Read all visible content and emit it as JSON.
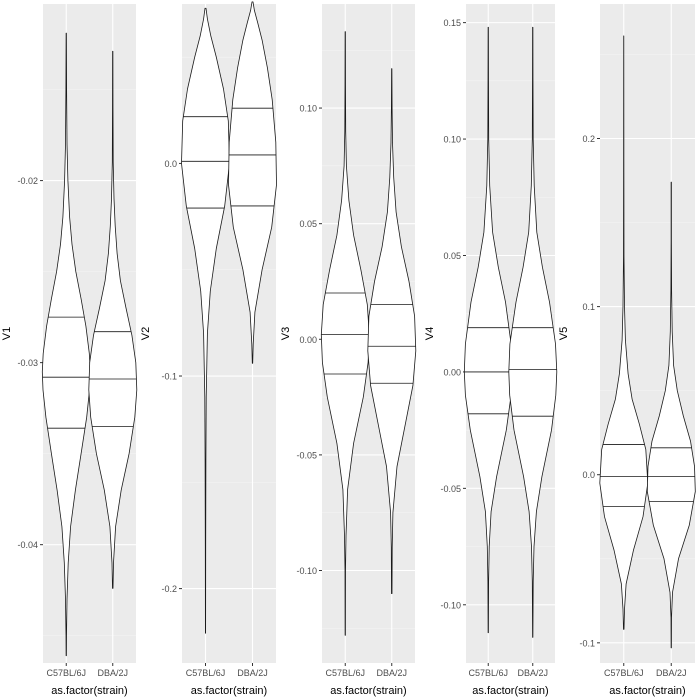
{
  "chart_data": [
    {
      "type": "violin",
      "xlabel": "as.factor(strain)",
      "ylabel": "V1",
      "categories": [
        "C57BL/6J",
        "DBA/2J"
      ],
      "ylim": [
        -0.0465,
        -0.0103
      ],
      "yticks": [
        -0.04,
        -0.03,
        -0.02
      ],
      "ytick_labels": [
        "-0.04",
        "-0.03",
        "-0.02"
      ],
      "grid": true,
      "series": [
        {
          "category": "C57BL/6J",
          "min": -0.0461,
          "max": -0.0119,
          "q1": -0.0336,
          "median": -0.0308,
          "q3": -0.0275,
          "profile": [
            [
              -0.0461,
              0.005
            ],
            [
              -0.045,
              0.01
            ],
            [
              -0.043,
              0.03
            ],
            [
              -0.041,
              0.08
            ],
            [
              -0.039,
              0.18
            ],
            [
              -0.037,
              0.38
            ],
            [
              -0.035,
              0.62
            ],
            [
              -0.033,
              0.85
            ],
            [
              -0.0315,
              0.97
            ],
            [
              -0.0305,
              1.0
            ],
            [
              -0.0295,
              0.96
            ],
            [
              -0.028,
              0.82
            ],
            [
              -0.0265,
              0.62
            ],
            [
              -0.025,
              0.4
            ],
            [
              -0.0235,
              0.24
            ],
            [
              -0.022,
              0.14
            ],
            [
              -0.02,
              0.07
            ],
            [
              -0.018,
              0.03
            ],
            [
              -0.015,
              0.015
            ],
            [
              -0.0119,
              0.005
            ]
          ]
        },
        {
          "category": "DBA/2J",
          "min": -0.0424,
          "max": -0.0129,
          "q1": -0.0335,
          "median": -0.0309,
          "q3": -0.0283,
          "profile": [
            [
              -0.0424,
              0.01
            ],
            [
              -0.041,
              0.03
            ],
            [
              -0.039,
              0.12
            ],
            [
              -0.037,
              0.35
            ],
            [
              -0.035,
              0.68
            ],
            [
              -0.033,
              0.92
            ],
            [
              -0.0315,
              1.0
            ],
            [
              -0.03,
              0.96
            ],
            [
              -0.0285,
              0.8
            ],
            [
              -0.027,
              0.55
            ],
            [
              -0.0255,
              0.32
            ],
            [
              -0.024,
              0.18
            ],
            [
              -0.0225,
              0.1
            ],
            [
              -0.021,
              0.05
            ],
            [
              -0.019,
              0.02
            ],
            [
              -0.016,
              0.01
            ],
            [
              -0.0129,
              0.005
            ]
          ]
        }
      ]
    },
    {
      "type": "violin",
      "xlabel": "as.factor(strain)",
      "ylabel": "V2",
      "categories": [
        "C57BL/6J",
        "DBA/2J"
      ],
      "ylim": [
        -0.235,
        0.075
      ],
      "yticks": [
        -0.2,
        -0.1,
        0.0
      ],
      "ytick_labels": [
        "-0.2",
        "-0.1",
        "0.0"
      ],
      "grid": true,
      "series": [
        {
          "category": "C57BL/6J",
          "min": -0.221,
          "max": 0.073,
          "q1": -0.021,
          "median": 0.001,
          "q3": 0.022,
          "profile": [
            [
              -0.221,
              0.005
            ],
            [
              -0.18,
              0.01
            ],
            [
              -0.14,
              0.015
            ],
            [
              -0.11,
              0.03
            ],
            [
              -0.08,
              0.08
            ],
            [
              -0.06,
              0.2
            ],
            [
              -0.04,
              0.45
            ],
            [
              -0.02,
              0.8
            ],
            [
              0.0,
              1.0
            ],
            [
              0.02,
              0.95
            ],
            [
              0.035,
              0.75
            ],
            [
              0.05,
              0.45
            ],
            [
              0.06,
              0.22
            ],
            [
              0.068,
              0.08
            ],
            [
              0.073,
              0.02
            ]
          ]
        },
        {
          "category": "DBA/2J",
          "min": -0.094,
          "max": 0.076,
          "q1": -0.02,
          "median": 0.004,
          "q3": 0.026,
          "profile": [
            [
              -0.094,
              0.01
            ],
            [
              -0.085,
              0.03
            ],
            [
              -0.07,
              0.1
            ],
            [
              -0.05,
              0.4
            ],
            [
              -0.03,
              0.8
            ],
            [
              -0.01,
              1.0
            ],
            [
              0.01,
              0.97
            ],
            [
              0.03,
              0.82
            ],
            [
              0.045,
              0.62
            ],
            [
              0.058,
              0.4
            ],
            [
              0.066,
              0.22
            ],
            [
              0.072,
              0.08
            ],
            [
              0.076,
              0.02
            ]
          ]
        }
      ]
    },
    {
      "type": "violin",
      "xlabel": "as.factor(strain)",
      "ylabel": "V3",
      "categories": [
        "C57BL/6J",
        "DBA/2J"
      ],
      "ylim": [
        -0.14,
        0.145
      ],
      "yticks": [
        -0.1,
        -0.05,
        0.0,
        0.05,
        0.1
      ],
      "ytick_labels": [
        "-0.10",
        "-0.05",
        "0.00",
        "0.05",
        "0.10"
      ],
      "grid": true,
      "series": [
        {
          "category": "C57BL/6J",
          "min": -0.128,
          "max": 0.133,
          "q1": -0.015,
          "median": 0.002,
          "q3": 0.02,
          "profile": [
            [
              -0.128,
              0.005
            ],
            [
              -0.1,
              0.01
            ],
            [
              -0.085,
              0.03
            ],
            [
              -0.065,
              0.1
            ],
            [
              -0.045,
              0.35
            ],
            [
              -0.025,
              0.75
            ],
            [
              -0.01,
              0.95
            ],
            [
              0.002,
              1.0
            ],
            [
              0.015,
              0.92
            ],
            [
              0.03,
              0.65
            ],
            [
              0.045,
              0.35
            ],
            [
              0.06,
              0.15
            ],
            [
              0.075,
              0.05
            ],
            [
              0.09,
              0.02
            ],
            [
              0.11,
              0.01
            ],
            [
              0.133,
              0.005
            ]
          ]
        },
        {
          "category": "DBA/2J",
          "min": -0.11,
          "max": 0.117,
          "q1": -0.019,
          "median": -0.003,
          "q3": 0.015,
          "profile": [
            [
              -0.11,
              0.01
            ],
            [
              -0.09,
              0.02
            ],
            [
              -0.075,
              0.05
            ],
            [
              -0.055,
              0.22
            ],
            [
              -0.035,
              0.6
            ],
            [
              -0.02,
              0.88
            ],
            [
              -0.005,
              1.0
            ],
            [
              0.01,
              0.95
            ],
            [
              0.025,
              0.72
            ],
            [
              0.04,
              0.4
            ],
            [
              0.055,
              0.18
            ],
            [
              0.07,
              0.08
            ],
            [
              0.085,
              0.03
            ],
            [
              0.1,
              0.015
            ],
            [
              0.117,
              0.005
            ]
          ]
        }
      ]
    },
    {
      "type": "violin",
      "xlabel": "as.factor(strain)",
      "ylabel": "V4",
      "categories": [
        "C57BL/6J",
        "DBA/2J"
      ],
      "ylim": [
        -0.125,
        0.158
      ],
      "yticks": [
        -0.1,
        -0.05,
        0.0,
        0.05,
        0.1,
        0.15
      ],
      "ytick_labels": [
        "-0.10",
        "-0.05",
        "0.00",
        "0.05",
        "0.10",
        "0.15"
      ],
      "grid": true,
      "series": [
        {
          "category": "C57BL/6J",
          "min": -0.112,
          "max": 0.148,
          "q1": -0.018,
          "median": 0.0,
          "q3": 0.019,
          "profile": [
            [
              -0.112,
              0.005
            ],
            [
              -0.09,
              0.015
            ],
            [
              -0.075,
              0.04
            ],
            [
              -0.06,
              0.12
            ],
            [
              -0.045,
              0.35
            ],
            [
              -0.025,
              0.75
            ],
            [
              -0.01,
              0.95
            ],
            [
              0.0,
              1.0
            ],
            [
              0.012,
              0.95
            ],
            [
              0.03,
              0.72
            ],
            [
              0.045,
              0.42
            ],
            [
              0.06,
              0.18
            ],
            [
              0.08,
              0.06
            ],
            [
              0.1,
              0.02
            ],
            [
              0.125,
              0.01
            ],
            [
              0.148,
              0.005
            ]
          ]
        },
        {
          "category": "DBA/2J",
          "min": -0.114,
          "max": 0.148,
          "q1": -0.019,
          "median": 0.001,
          "q3": 0.019,
          "profile": [
            [
              -0.114,
              0.005
            ],
            [
              -0.09,
              0.02
            ],
            [
              -0.075,
              0.05
            ],
            [
              -0.06,
              0.15
            ],
            [
              -0.045,
              0.38
            ],
            [
              -0.025,
              0.78
            ],
            [
              -0.01,
              0.96
            ],
            [
              0.0,
              1.0
            ],
            [
              0.012,
              0.95
            ],
            [
              0.03,
              0.7
            ],
            [
              0.045,
              0.4
            ],
            [
              0.06,
              0.17
            ],
            [
              0.08,
              0.06
            ],
            [
              0.1,
              0.02
            ],
            [
              0.125,
              0.01
            ],
            [
              0.148,
              0.005
            ]
          ]
        }
      ]
    },
    {
      "type": "violin",
      "xlabel": "as.factor(strain)",
      "ylabel": "V5",
      "categories": [
        "C57BL/6J",
        "DBA/2J"
      ],
      "ylim": [
        -0.112,
        0.28
      ],
      "yticks": [
        -0.1,
        0.0,
        0.1,
        0.2
      ],
      "ytick_labels": [
        "-0.1",
        "0.0",
        "0.1",
        "0.2"
      ],
      "grid": true,
      "series": [
        {
          "category": "C57BL/6J",
          "min": -0.092,
          "max": 0.261,
          "q1": -0.019,
          "median": -0.001,
          "q3": 0.018,
          "profile": [
            [
              -0.092,
              0.01
            ],
            [
              -0.08,
              0.03
            ],
            [
              -0.065,
              0.1
            ],
            [
              -0.045,
              0.4
            ],
            [
              -0.025,
              0.8
            ],
            [
              -0.005,
              1.0
            ],
            [
              0.015,
              0.92
            ],
            [
              0.03,
              0.65
            ],
            [
              0.045,
              0.35
            ],
            [
              0.06,
              0.18
            ],
            [
              0.08,
              0.07
            ],
            [
              0.1,
              0.03
            ],
            [
              0.13,
              0.01
            ],
            [
              0.18,
              0.005
            ],
            [
              0.261,
              0.003
            ]
          ]
        },
        {
          "category": "DBA/2J",
          "min": -0.103,
          "max": 0.174,
          "q1": -0.016,
          "median": -0.001,
          "q3": 0.016,
          "profile": [
            [
              -0.103,
              0.005
            ],
            [
              -0.085,
              0.01
            ],
            [
              -0.07,
              0.05
            ],
            [
              -0.05,
              0.3
            ],
            [
              -0.03,
              0.75
            ],
            [
              -0.01,
              1.0
            ],
            [
              0.005,
              0.97
            ],
            [
              0.02,
              0.8
            ],
            [
              0.035,
              0.5
            ],
            [
              0.05,
              0.25
            ],
            [
              0.065,
              0.1
            ],
            [
              0.085,
              0.04
            ],
            [
              0.11,
              0.015
            ],
            [
              0.14,
              0.008
            ],
            [
              0.174,
              0.005
            ]
          ]
        }
      ]
    }
  ]
}
